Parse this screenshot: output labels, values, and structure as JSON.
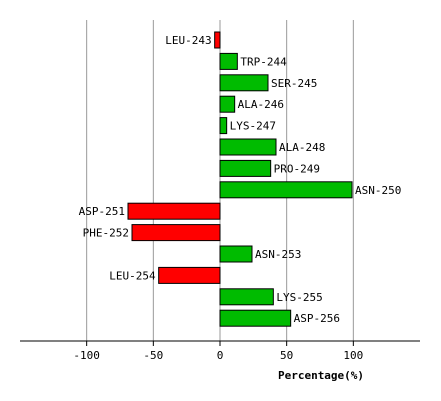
{
  "chart_data": {
    "type": "bar",
    "orientation": "horizontal",
    "categories": [
      "LEU-243",
      "TRP-244",
      "SER-245",
      "ALA-246",
      "LYS-247",
      "ALA-248",
      "PRO-249",
      "ASN-250",
      "ASP-251",
      "PHE-252",
      "ASN-253",
      "LEU-254",
      "LYS-255",
      "ASP-256"
    ],
    "values": [
      -4,
      13,
      36,
      11,
      5,
      42,
      38,
      99,
      -69,
      -66,
      24,
      -46,
      40,
      53
    ],
    "xlabel": "Percentage(%)",
    "xlim": [
      -150,
      150
    ],
    "xticks": [
      -100,
      -50,
      0,
      50,
      100
    ],
    "xtick_labels": [
      "-100",
      "-50",
      "0",
      "50",
      "100"
    ],
    "grid": "vertical",
    "colors": {
      "positive": "#00bb00",
      "negative": "#ff0000",
      "grid": "#999999",
      "axis": "#000000"
    }
  }
}
